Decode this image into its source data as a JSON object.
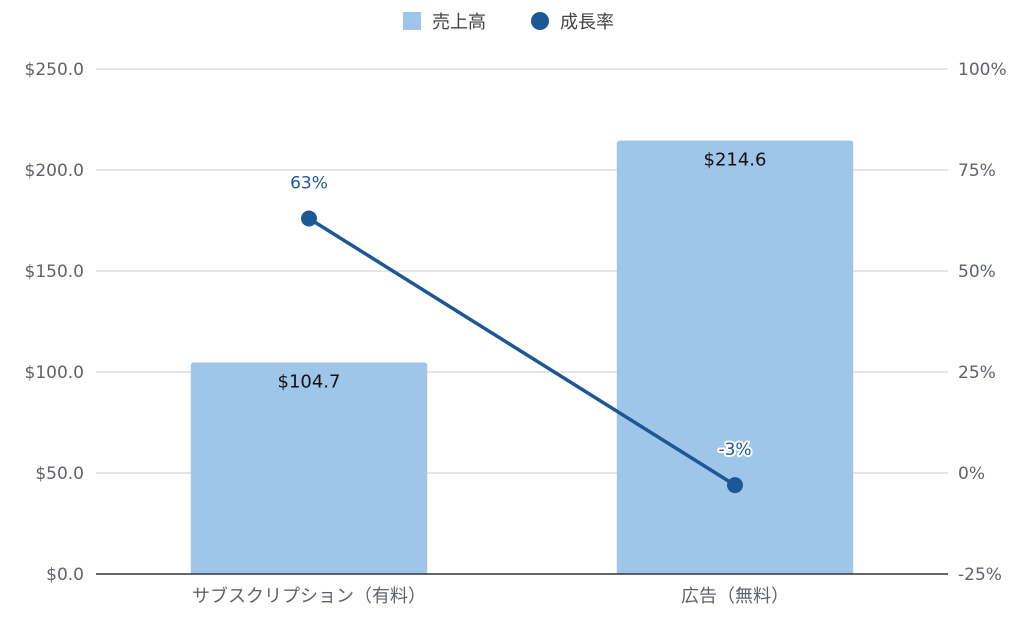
{
  "chart_data": {
    "type": "bar",
    "categories": [
      "サブスクリプション（有料）",
      "広告（無料）"
    ],
    "series": [
      {
        "name": "売上高",
        "type": "bar",
        "axis": "left",
        "values": [
          104.7,
          214.6
        ],
        "labels": [
          "$104.7",
          "$214.6"
        ],
        "color": "#9fc5e8"
      },
      {
        "name": "成長率",
        "type": "line",
        "axis": "right",
        "values": [
          63,
          -3
        ],
        "labels": [
          "63%",
          "-3%"
        ],
        "color": "#1c5796"
      }
    ],
    "y_left": {
      "range": [
        0,
        250
      ],
      "ticks": [
        "$0.0",
        "$50.0",
        "$100.0",
        "$150.0",
        "$200.0",
        "$250.0"
      ]
    },
    "y_right": {
      "range": [
        -25,
        100
      ],
      "ticks": [
        "-25%",
        "0%",
        "25%",
        "50%",
        "75%",
        "100%"
      ]
    },
    "grid": true,
    "legend_position": "top-center"
  }
}
